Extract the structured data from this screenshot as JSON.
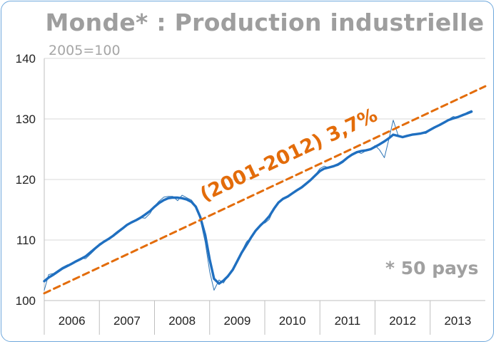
{
  "chart_data": {
    "type": "line",
    "title": "Monde* : Production industrielle",
    "subtitle": "2005=100",
    "note": "* 50 pays",
    "xlabel": "",
    "ylabel": "",
    "x_categories": [
      "2006",
      "2007",
      "2008",
      "2009",
      "2010",
      "2011",
      "2012",
      "2013"
    ],
    "ylim": [
      100,
      140
    ],
    "yticks": [
      100,
      110,
      120,
      130,
      140
    ],
    "grid": true,
    "series": [
      {
        "name": "",
        "style": "thin-monthly",
        "color": "#2e75b6",
        "points": [
          [
            2006.0,
            101.7
          ],
          [
            2006.08,
            104.3
          ],
          [
            2006.17,
            104.5
          ],
          [
            2006.25,
            105.0
          ],
          [
            2006.33,
            105.5
          ],
          [
            2006.42,
            105.9
          ],
          [
            2006.5,
            106.0
          ],
          [
            2006.58,
            106.6
          ],
          [
            2006.67,
            107.0
          ],
          [
            2006.75,
            106.9
          ],
          [
            2006.83,
            107.6
          ],
          [
            2006.92,
            108.4
          ],
          [
            2007.0,
            109.4
          ],
          [
            2007.08,
            109.7
          ],
          [
            2007.17,
            110.2
          ],
          [
            2007.25,
            110.6
          ],
          [
            2007.33,
            111.1
          ],
          [
            2007.42,
            111.8
          ],
          [
            2007.5,
            112.6
          ],
          [
            2007.58,
            112.9
          ],
          [
            2007.67,
            113.2
          ],
          [
            2007.75,
            113.7
          ],
          [
            2007.83,
            113.6
          ],
          [
            2007.92,
            114.4
          ],
          [
            2008.0,
            115.6
          ],
          [
            2008.08,
            116.4
          ],
          [
            2008.17,
            117.1
          ],
          [
            2008.25,
            117.2
          ],
          [
            2008.33,
            117.2
          ],
          [
            2008.42,
            116.5
          ],
          [
            2008.5,
            117.4
          ],
          [
            2008.58,
            117.0
          ],
          [
            2008.67,
            116.6
          ],
          [
            2008.75,
            115.6
          ],
          [
            2008.83,
            113.4
          ],
          [
            2008.92,
            109.6
          ],
          [
            2009.0,
            104.8
          ],
          [
            2009.08,
            101.7
          ],
          [
            2009.17,
            103.4
          ],
          [
            2009.25,
            102.9
          ],
          [
            2009.33,
            104.0
          ],
          [
            2009.42,
            105.0
          ],
          [
            2009.5,
            106.6
          ],
          [
            2009.58,
            108.1
          ],
          [
            2009.67,
            109.7
          ],
          [
            2009.75,
            110.4
          ],
          [
            2009.83,
            111.6
          ],
          [
            2009.92,
            112.6
          ],
          [
            2010.0,
            112.8
          ],
          [
            2010.08,
            113.4
          ],
          [
            2010.17,
            115.2
          ],
          [
            2010.25,
            116.3
          ],
          [
            2010.33,
            116.8
          ],
          [
            2010.42,
            117.3
          ],
          [
            2010.5,
            117.7
          ],
          [
            2010.58,
            118.1
          ],
          [
            2010.67,
            118.6
          ],
          [
            2010.75,
            119.3
          ],
          [
            2010.83,
            119.8
          ],
          [
            2010.92,
            120.8
          ],
          [
            2011.0,
            121.8
          ],
          [
            2011.08,
            122.2
          ],
          [
            2011.17,
            121.9
          ],
          [
            2011.25,
            122.1
          ],
          [
            2011.33,
            122.3
          ],
          [
            2011.42,
            122.8
          ],
          [
            2011.5,
            123.6
          ],
          [
            2011.58,
            124.1
          ],
          [
            2011.67,
            124.6
          ],
          [
            2011.75,
            124.3
          ],
          [
            2011.83,
            124.7
          ],
          [
            2011.92,
            125.0
          ],
          [
            2012.0,
            125.6
          ],
          [
            2012.08,
            124.9
          ],
          [
            2012.17,
            123.6
          ],
          [
            2012.25,
            126.6
          ],
          [
            2012.33,
            129.8
          ],
          [
            2012.42,
            127.3
          ],
          [
            2012.5,
            126.9
          ],
          [
            2012.58,
            127.3
          ],
          [
            2012.67,
            127.4
          ],
          [
            2012.75,
            127.5
          ],
          [
            2012.83,
            127.7
          ],
          [
            2012.92,
            127.6
          ],
          [
            2013.0,
            128.1
          ],
          [
            2013.08,
            128.5
          ],
          [
            2013.17,
            129.0
          ],
          [
            2013.25,
            129.3
          ],
          [
            2013.33,
            129.9
          ],
          [
            2013.42,
            130.4
          ],
          [
            2013.5,
            130.2
          ],
          [
            2013.58,
            130.5
          ],
          [
            2013.67,
            131.1
          ],
          [
            2013.75,
            131.4
          ]
        ]
      },
      {
        "name": "",
        "style": "thick-smoothed",
        "color": "#1f6fc0",
        "points": [
          [
            2006.0,
            103.2
          ],
          [
            2006.08,
            103.8
          ],
          [
            2006.17,
            104.3
          ],
          [
            2006.25,
            104.8
          ],
          [
            2006.33,
            105.3
          ],
          [
            2006.42,
            105.7
          ],
          [
            2006.5,
            106.1
          ],
          [
            2006.58,
            106.5
          ],
          [
            2006.67,
            106.9
          ],
          [
            2006.75,
            107.3
          ],
          [
            2006.83,
            107.9
          ],
          [
            2006.92,
            108.6
          ],
          [
            2007.0,
            109.2
          ],
          [
            2007.08,
            109.7
          ],
          [
            2007.17,
            110.2
          ],
          [
            2007.25,
            110.7
          ],
          [
            2007.33,
            111.3
          ],
          [
            2007.42,
            111.9
          ],
          [
            2007.5,
            112.5
          ],
          [
            2007.58,
            112.9
          ],
          [
            2007.67,
            113.3
          ],
          [
            2007.75,
            113.7
          ],
          [
            2007.83,
            114.2
          ],
          [
            2007.92,
            114.8
          ],
          [
            2008.0,
            115.5
          ],
          [
            2008.08,
            116.1
          ],
          [
            2008.17,
            116.6
          ],
          [
            2008.25,
            116.9
          ],
          [
            2008.33,
            117.0
          ],
          [
            2008.42,
            117.0
          ],
          [
            2008.5,
            116.9
          ],
          [
            2008.58,
            116.7
          ],
          [
            2008.67,
            116.3
          ],
          [
            2008.75,
            115.5
          ],
          [
            2008.83,
            113.8
          ],
          [
            2008.92,
            110.8
          ],
          [
            2009.0,
            106.8
          ],
          [
            2009.08,
            103.6
          ],
          [
            2009.17,
            102.8
          ],
          [
            2009.25,
            103.3
          ],
          [
            2009.33,
            104.0
          ],
          [
            2009.42,
            105.1
          ],
          [
            2009.5,
            106.5
          ],
          [
            2009.58,
            107.9
          ],
          [
            2009.67,
            109.2
          ],
          [
            2009.75,
            110.4
          ],
          [
            2009.83,
            111.5
          ],
          [
            2009.92,
            112.4
          ],
          [
            2010.0,
            113.1
          ],
          [
            2010.08,
            113.9
          ],
          [
            2010.17,
            115.2
          ],
          [
            2010.25,
            116.2
          ],
          [
            2010.33,
            116.8
          ],
          [
            2010.42,
            117.2
          ],
          [
            2010.5,
            117.7
          ],
          [
            2010.58,
            118.2
          ],
          [
            2010.67,
            118.7
          ],
          [
            2010.75,
            119.3
          ],
          [
            2010.83,
            119.9
          ],
          [
            2010.92,
            120.7
          ],
          [
            2011.0,
            121.4
          ],
          [
            2011.08,
            121.8
          ],
          [
            2011.17,
            122.0
          ],
          [
            2011.25,
            122.2
          ],
          [
            2011.33,
            122.5
          ],
          [
            2011.42,
            123.0
          ],
          [
            2011.5,
            123.6
          ],
          [
            2011.58,
            124.1
          ],
          [
            2011.67,
            124.5
          ],
          [
            2011.75,
            124.7
          ],
          [
            2011.83,
            124.8
          ],
          [
            2011.92,
            125.0
          ],
          [
            2012.0,
            125.4
          ],
          [
            2012.08,
            125.8
          ],
          [
            2012.17,
            126.3
          ],
          [
            2012.25,
            126.8
          ],
          [
            2012.33,
            127.4
          ],
          [
            2012.42,
            127.2
          ],
          [
            2012.5,
            127.0
          ],
          [
            2012.58,
            127.2
          ],
          [
            2012.67,
            127.4
          ],
          [
            2012.75,
            127.5
          ],
          [
            2012.83,
            127.6
          ],
          [
            2012.92,
            127.8
          ],
          [
            2013.0,
            128.2
          ],
          [
            2013.08,
            128.6
          ],
          [
            2013.17,
            129.0
          ],
          [
            2013.25,
            129.4
          ],
          [
            2013.33,
            129.8
          ],
          [
            2013.42,
            130.1
          ],
          [
            2013.5,
            130.3
          ],
          [
            2013.58,
            130.6
          ],
          [
            2013.67,
            130.9
          ],
          [
            2013.75,
            131.2
          ]
        ]
      },
      {
        "name": "",
        "style": "dashed-trend",
        "color": "#e36c0a",
        "label": "(2001-2012) 3,7%",
        "points": [
          [
            2006.0,
            101.2
          ],
          [
            2014.0,
            135.4
          ]
        ]
      }
    ]
  }
}
